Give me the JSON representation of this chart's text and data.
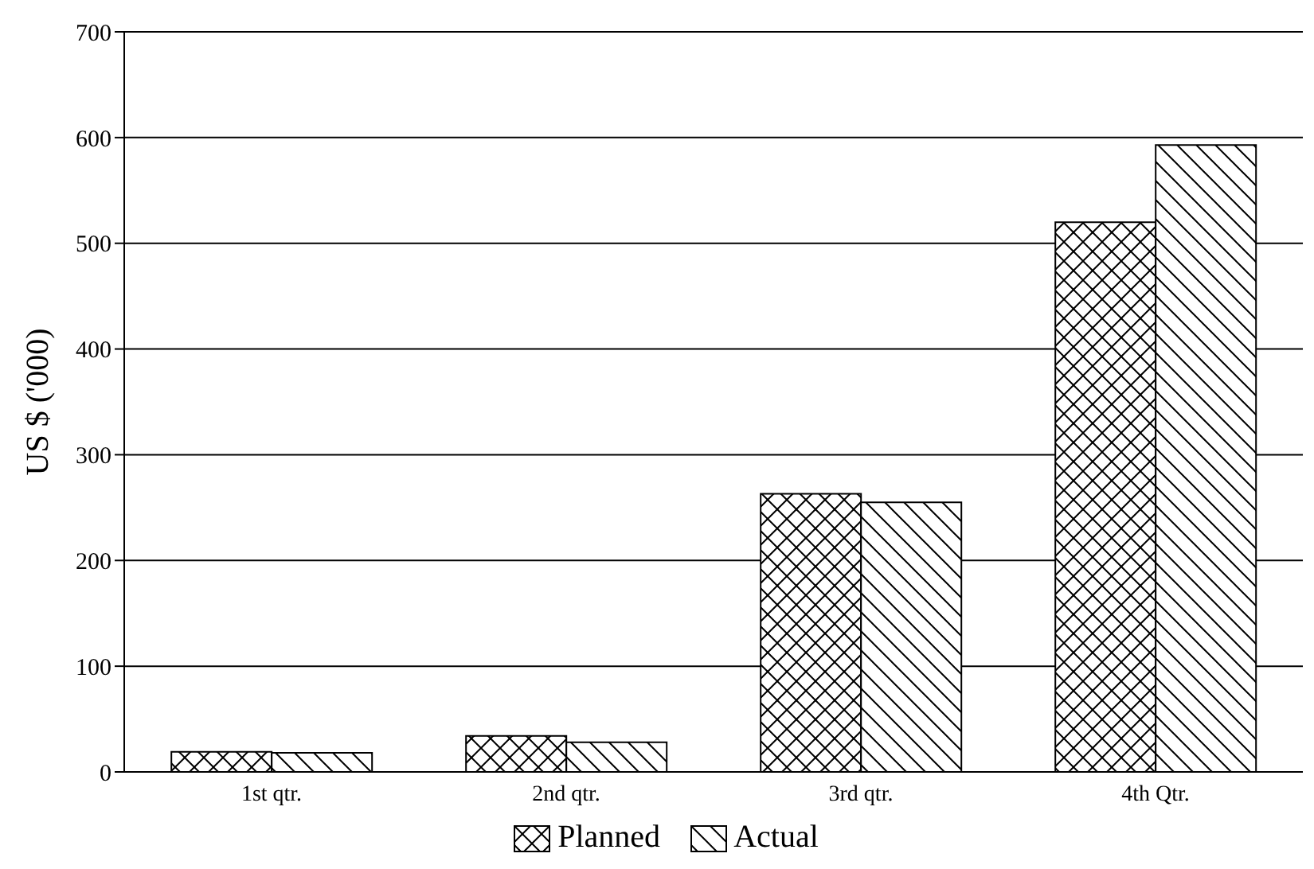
{
  "chart_data": {
    "type": "bar",
    "ylabel": "US $ ('000)",
    "categories": [
      "1st qtr.",
      "2nd qtr.",
      "3rd qtr.",
      "4th Qtr."
    ],
    "series": [
      {
        "name": "Planned",
        "color": "#000000",
        "values": [
          19,
          34,
          263,
          520
        ]
      },
      {
        "name": "Actual",
        "color": "#000000",
        "values": [
          18,
          28,
          255,
          593
        ]
      }
    ],
    "ylim": [
      0,
      700
    ],
    "yticks": [
      0,
      100,
      200,
      300,
      400,
      500,
      600,
      700
    ],
    "grid": "y",
    "legend": "bottom"
  }
}
